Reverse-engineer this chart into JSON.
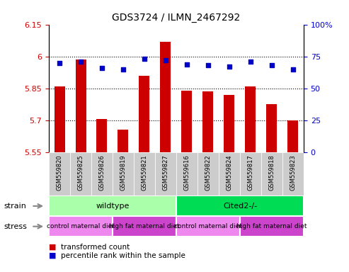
{
  "title": "GDS3724 / ILMN_2467292",
  "samples": [
    "GSM559820",
    "GSM559825",
    "GSM559826",
    "GSM559819",
    "GSM559821",
    "GSM559827",
    "GSM559616",
    "GSM559822",
    "GSM559824",
    "GSM559817",
    "GSM559818",
    "GSM559823"
  ],
  "bar_values": [
    5.86,
    5.985,
    5.705,
    5.655,
    5.91,
    6.07,
    5.84,
    5.835,
    5.82,
    5.86,
    5.775,
    5.7
  ],
  "percentile_values": [
    70,
    71,
    66,
    65,
    73,
    72,
    69,
    68,
    67,
    71,
    68,
    65
  ],
  "ymin": 5.55,
  "ymax": 6.15,
  "yticks": [
    5.55,
    5.7,
    5.85,
    6.0,
    6.15
  ],
  "ytick_labels": [
    "5.55",
    "5.7",
    "5.85",
    "6",
    "6.15"
  ],
  "y2min": 0,
  "y2max": 100,
  "y2ticks": [
    0,
    25,
    50,
    75,
    100
  ],
  "y2tick_labels": [
    "0",
    "25",
    "50",
    "75",
    "100%"
  ],
  "grid_lines": [
    5.7,
    5.85,
    6.0
  ],
  "bar_color": "#cc0000",
  "percentile_color": "#0000cc",
  "strain_groups": [
    {
      "label": "wildtype",
      "start": 0,
      "end": 6,
      "color": "#aaffaa"
    },
    {
      "label": "Cited2-/-",
      "start": 6,
      "end": 12,
      "color": "#00dd55"
    }
  ],
  "stress_groups": [
    {
      "label": "control maternal diet",
      "start": 0,
      "end": 3,
      "color": "#ee88ee"
    },
    {
      "label": "high fat maternal diet",
      "start": 3,
      "end": 6,
      "color": "#cc44cc"
    },
    {
      "label": "control maternal diet",
      "start": 6,
      "end": 9,
      "color": "#ee88ee"
    },
    {
      "label": "high fat maternal diet",
      "start": 9,
      "end": 12,
      "color": "#cc44cc"
    }
  ],
  "legend_items": [
    {
      "label": "transformed count",
      "color": "#cc0000"
    },
    {
      "label": "percentile rank within the sample",
      "color": "#0000cc"
    }
  ],
  "strain_label": "strain",
  "stress_label": "stress",
  "bar_bottom": 5.55,
  "xtick_bg_color": "#cccccc",
  "bar_width": 0.5
}
